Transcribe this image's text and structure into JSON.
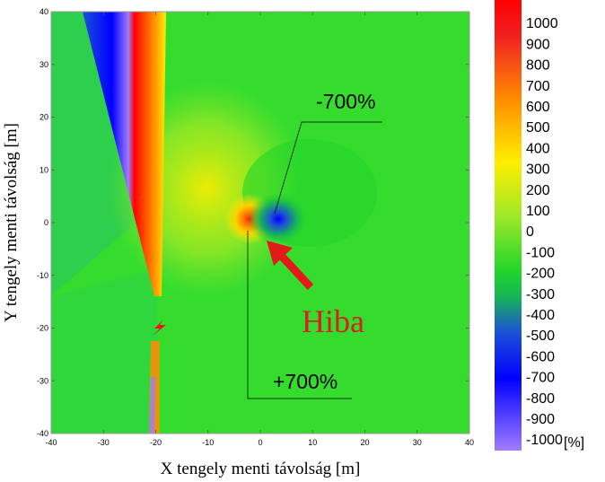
{
  "chart_data": {
    "type": "heatmap",
    "title": "",
    "xlabel": "X tengely menti távolság [m]",
    "ylabel": "Y tengely menti távolság [m]",
    "xlim": [
      -40,
      40
    ],
    "ylim": [
      -40,
      40
    ],
    "x_ticks": [
      "-40",
      "-30",
      "-20",
      "-10",
      "0",
      "10",
      "20",
      "30",
      "40"
    ],
    "y_ticks": [
      "40",
      "30",
      "20",
      "10",
      "0",
      "-10",
      "-20",
      "-30",
      "-40"
    ],
    "colorbar": {
      "levels": [
        1000,
        900,
        800,
        700,
        600,
        500,
        400,
        300,
        200,
        100,
        0,
        -100,
        -200,
        -300,
        -400,
        -500,
        -600,
        -700,
        -800,
        -900,
        -1000
      ],
      "labels": [
        "1000",
        "900",
        "800",
        "700",
        "600",
        "500",
        "400",
        "300",
        "200",
        "100",
        "0",
        "-100",
        "-200",
        "-300",
        "-400",
        "-500",
        "-600",
        "-700",
        "-800",
        "-900",
        "-1000"
      ],
      "unit": "[%]"
    },
    "annotations": [
      {
        "text": "-700%",
        "x": 3.5,
        "y": 0.5
      },
      {
        "text": "+700%",
        "x": -2,
        "y": 0
      },
      {
        "text": "Hiba",
        "x": 1.5,
        "y": -4
      }
    ]
  }
}
